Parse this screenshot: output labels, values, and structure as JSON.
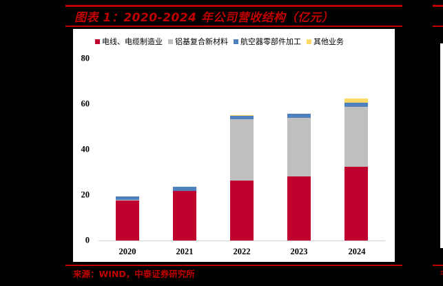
{
  "header": {
    "title": "图表 1：2020-2024 年公司营收结构（亿元）"
  },
  "footer": {
    "source": "来源：WIND，中泰证券研究所",
    "right_glyph": "来"
  },
  "colors": {
    "frame_red": "#C00000",
    "series": [
      "#C0002F",
      "#BFBFBF",
      "#4F81BD",
      "#FFD966"
    ]
  },
  "chart_data": {
    "type": "bar",
    "stacked": true,
    "title": "2020-2024 年公司营收结构（亿元）",
    "xlabel": "",
    "ylabel": "",
    "categories": [
      "2020",
      "2021",
      "2022",
      "2023",
      "2024"
    ],
    "series": [
      {
        "name": "电线、电缆制造业",
        "color": "#C0002F",
        "values": [
          17.6,
          21.7,
          26.3,
          28.1,
          32.3
        ]
      },
      {
        "name": "铝基复合新材料",
        "color": "#BFBFBF",
        "values": [
          0.3,
          0.1,
          26.9,
          25.7,
          26.6
        ]
      },
      {
        "name": "航空器零部件加工",
        "color": "#4F81BD",
        "values": [
          1.5,
          1.8,
          1.8,
          1.9,
          1.6
        ]
      },
      {
        "name": "其他业务",
        "color": "#FFD966",
        "values": [
          0.0,
          0.0,
          0.2,
          0.2,
          1.8
        ]
      }
    ],
    "yticks": [
      "0",
      "20",
      "40",
      "60",
      "80"
    ],
    "ylim": [
      0,
      80
    ],
    "grid": false,
    "legend_position": "top"
  }
}
